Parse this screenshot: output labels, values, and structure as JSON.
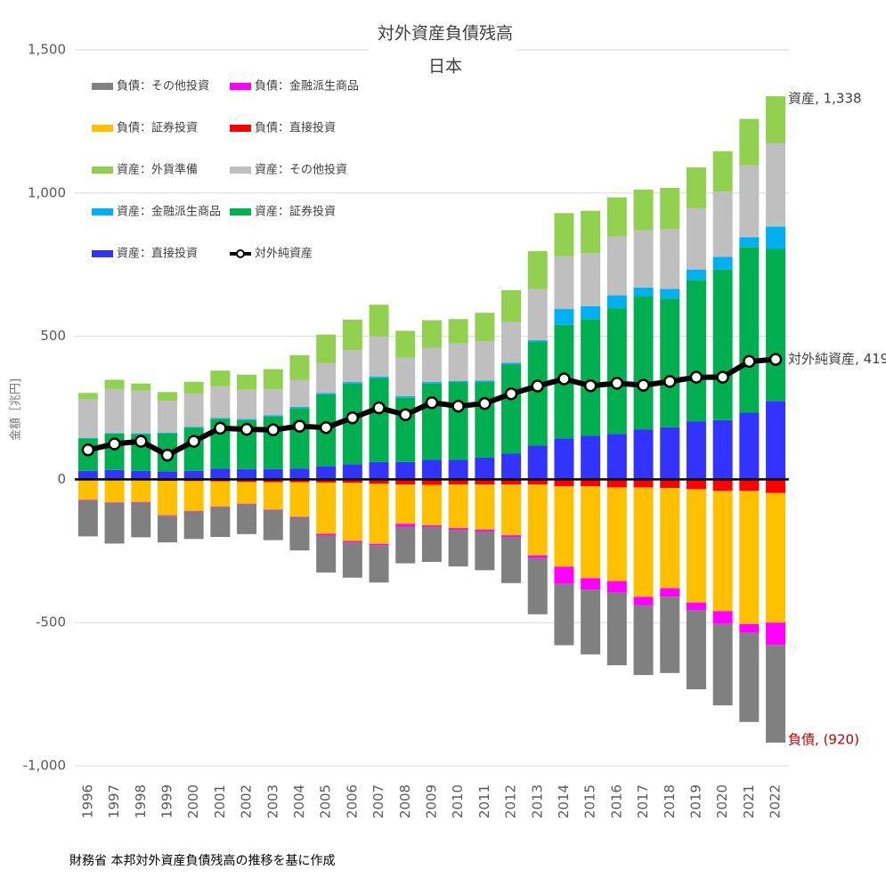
{
  "chart_data": {
    "type": "bar",
    "title": "対外資産負債残高",
    "subtitle": "日本",
    "y_label": "金額［兆円]",
    "source": "財務省 本邦対外資産負債残高の推移を基に作成",
    "categories": [
      "1996",
      "1997",
      "1998",
      "1999",
      "2000",
      "2001",
      "2002",
      "2003",
      "2004",
      "2005",
      "2006",
      "2007",
      "2008",
      "2009",
      "2010",
      "2011",
      "2012",
      "2013",
      "2014",
      "2015",
      "2016",
      "2017",
      "2018",
      "2019",
      "2020",
      "2021",
      "2022"
    ],
    "ylim": [
      -1000,
      1500
    ],
    "yticks": [
      {
        "value": -1000,
        "label": "-1,000"
      },
      -500,
      0,
      500,
      {
        "value": 1000,
        "label": "1,000"
      },
      {
        "value": 1500,
        "label": "1,500"
      }
    ],
    "grid": true,
    "series": [
      {
        "name": "負債：その他投資",
        "color": "#808080",
        "values": [
          -126,
          -142,
          -121,
          -93,
          -96,
          -104,
          -104,
          -105,
          -116,
          -129,
          -123,
          -129,
          -128,
          -123,
          -127,
          -135,
          -160,
          -196,
          -214,
          -226,
          -254,
          -243,
          -266,
          -276,
          -284,
          -312,
          -341
        ]
      },
      {
        "name": "負債：金融派生商品",
        "color": "#ff00ff",
        "values": [
          -2,
          -2,
          -2,
          -2,
          -2,
          -2,
          -2,
          -2,
          -2,
          -6,
          -5,
          -6,
          -10,
          -5,
          -7,
          -7,
          -7,
          -10,
          -60,
          -40,
          -40,
          -30,
          -30,
          -27,
          -45,
          -30,
          -78
        ]
      },
      {
        "name": "負債：証券投資",
        "color": "#ffc000",
        "values": [
          -68,
          -77,
          -76,
          -120,
          -104,
          -88,
          -76,
          -95,
          -120,
          -179,
          -203,
          -210,
          -137,
          -141,
          -152,
          -157,
          -177,
          -247,
          -281,
          -321,
          -327,
          -382,
          -350,
          -396,
          -420,
          -465,
          -453
        ]
      },
      {
        "name": "負債：直接投資",
        "color": "#ff0000",
        "values": [
          -3,
          -3,
          -3,
          -5,
          -6,
          -7,
          -9,
          -10,
          -10,
          -11,
          -12,
          -15,
          -18,
          -19,
          -18,
          -18,
          -18,
          -18,
          -24,
          -24,
          -28,
          -28,
          -30,
          -34,
          -40,
          -40,
          -47
        ]
      },
      {
        "name": "資産：外貨準備",
        "color": "#92d050",
        "values": [
          22,
          32,
          25,
          30,
          41,
          55,
          53,
          70,
          86,
          99,
          106,
          110,
          94,
          96,
          85,
          99,
          111,
          132,
          150,
          148,
          137,
          142,
          143,
          143,
          141,
          162,
          163
        ]
      },
      {
        "name": "資産：その他投資",
        "color": "#bfbfbf",
        "values": [
          135,
          154,
          149,
          112,
          116,
          110,
          102,
          91,
          95,
          105,
          112,
          141,
          134,
          120,
          131,
          138,
          143,
          179,
          185,
          185,
          205,
          200,
          210,
          214,
          228,
          251,
          292
        ]
      },
      {
        "name": "資産：金融派生商品",
        "color": "#00b0f0",
        "values": [
          2,
          2,
          3,
          3,
          3,
          3,
          4,
          4,
          4,
          5,
          5,
          6,
          6,
          5,
          4,
          5,
          5,
          6,
          55,
          45,
          45,
          30,
          33,
          36,
          44,
          34,
          78
        ]
      },
      {
        "name": "資産：証券投資",
        "color": "#00b050",
        "values": [
          113,
          127,
          128,
          132,
          151,
          174,
          171,
          184,
          211,
          251,
          282,
          292,
          224,
          267,
          272,
          264,
          312,
          362,
          397,
          408,
          439,
          465,
          450,
          494,
          526,
          579,
          531
        ]
      },
      {
        "name": "資産：直接投資",
        "color": "#3333ff",
        "values": [
          30,
          33,
          30,
          28,
          30,
          38,
          36,
          36,
          38,
          46,
          53,
          61,
          61,
          68,
          68,
          76,
          90,
          118,
          143,
          152,
          159,
          175,
          182,
          203,
          207,
          233,
          274
        ]
      },
      {
        "name": "対外純資産",
        "type": "line",
        "color": "#000000",
        "values": [
          103,
          124,
          133,
          85,
          133,
          179,
          175,
          173,
          186,
          181,
          215,
          250,
          226,
          268,
          256,
          265,
          299,
          326,
          351,
          327,
          336,
          329,
          342,
          357,
          357,
          412,
          419
        ]
      }
    ],
    "annotations": [
      {
        "text": "資産, 1,338",
        "color": "#404040"
      },
      {
        "text": "対外純資産, 419",
        "color": "#404040"
      },
      {
        "text": "負債, (920)",
        "color": "#c00000"
      }
    ]
  }
}
